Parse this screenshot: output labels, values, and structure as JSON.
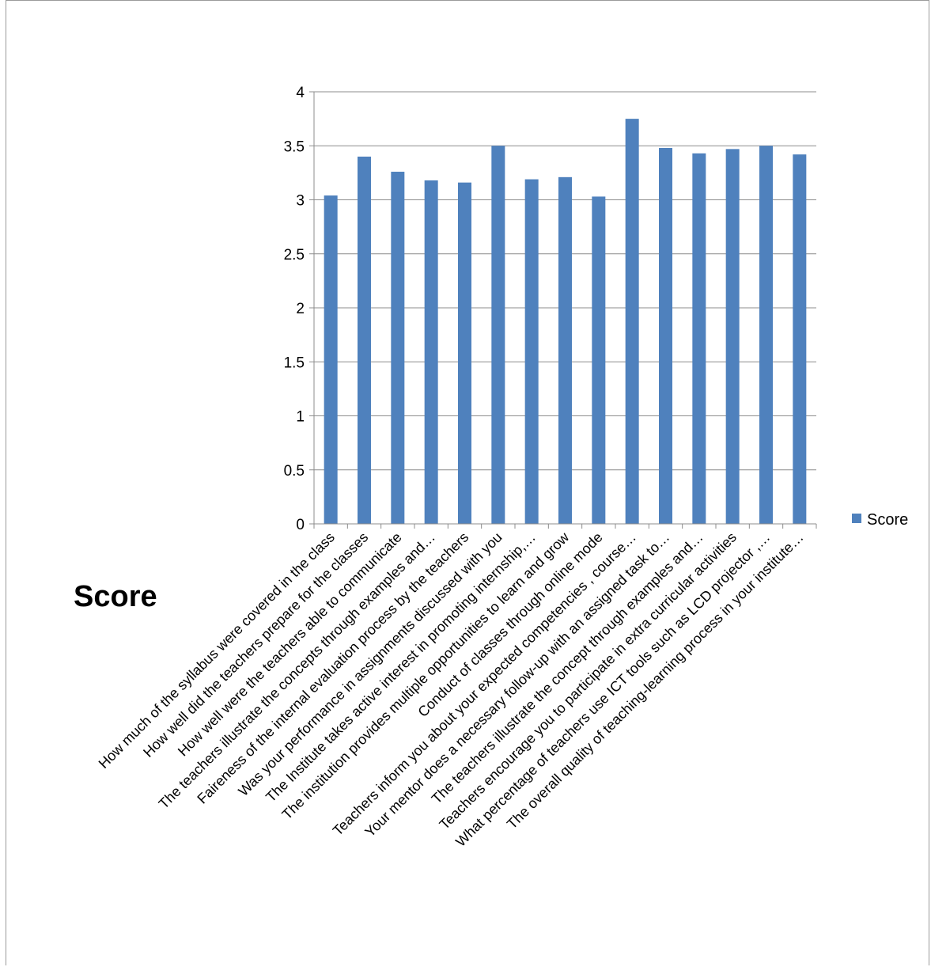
{
  "chart_data": {
    "type": "bar",
    "title": "",
    "side_title": "Score",
    "xlabel": "",
    "ylabel": "",
    "ylim": [
      0,
      4
    ],
    "y_ticks": [
      "0",
      "0.5",
      "1",
      "1.5",
      "2",
      "2.5",
      "3",
      "3.5",
      "4"
    ],
    "grid": true,
    "legend_position": "right",
    "categories": [
      "How much of the syllabus were covered in the class",
      "How well did the teachers prepare for the classes",
      "How well were the teachers able to communicate",
      "The teachers illustrate the concepts through examples and…",
      "Faireness of the internal evaluation process by the teachers",
      "Was your performance in assignments discussed with you",
      "The Institute takes active interest in promoting internship,…",
      "The institution provides multiple opportunities to learn and grow",
      "Conduct of classes through online mode",
      "Teachers inform you about your expected competencies , course…",
      "Your mentor does a necessary follow-up with an assigned task to…",
      "The teachers illustrate the concept through examples and…",
      "Teachers encourage you to participate in extra curricular activities",
      "What percentage of teachers use ICT tools such as LCD projector ,…",
      "The overall quality of teaching-learning process in your institute…"
    ],
    "series": [
      {
        "name": "Score",
        "color": "#4f81bd",
        "values": [
          3.04,
          3.4,
          3.26,
          3.18,
          3.16,
          3.5,
          3.19,
          3.21,
          3.03,
          3.75,
          3.48,
          3.43,
          3.47,
          3.5,
          3.42
        ]
      }
    ]
  }
}
